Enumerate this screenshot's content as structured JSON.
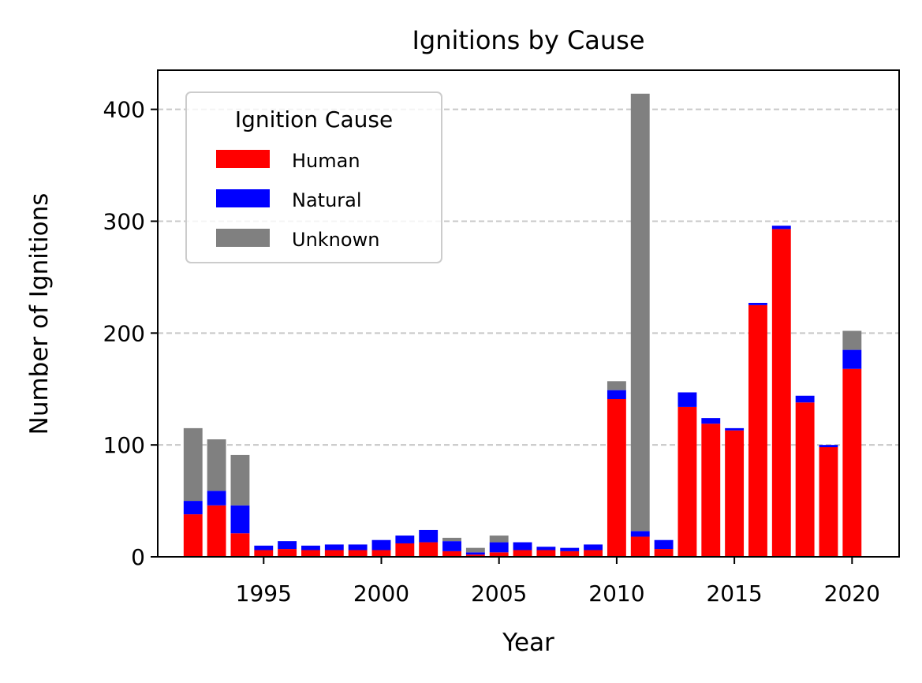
{
  "chart_data": {
    "type": "bar",
    "stacked": true,
    "title": "Ignitions by Cause",
    "xlabel": "Year",
    "ylabel": "Number of Ignitions",
    "x": [
      1992,
      1993,
      1994,
      1995,
      1996,
      1997,
      1998,
      1999,
      2000,
      2001,
      2002,
      2003,
      2004,
      2005,
      2006,
      2007,
      2008,
      2009,
      2010,
      2011,
      2012,
      2013,
      2014,
      2015,
      2016,
      2017,
      2018,
      2019,
      2020
    ],
    "series": [
      {
        "name": "Human",
        "color": "#ff0000",
        "values": [
          38,
          46,
          21,
          6,
          7,
          6,
          6,
          6,
          6,
          12,
          13,
          5,
          2,
          4,
          6,
          6,
          5,
          6,
          141,
          18,
          7,
          134,
          119,
          113,
          225,
          293,
          138,
          98,
          168
        ]
      },
      {
        "name": "Natural",
        "color": "#0000ff",
        "values": [
          12,
          13,
          25,
          4,
          7,
          4,
          5,
          5,
          9,
          7,
          11,
          9,
          2,
          9,
          7,
          3,
          3,
          5,
          8,
          5,
          8,
          13,
          5,
          2,
          2,
          3,
          6,
          2,
          17
        ]
      },
      {
        "name": "Unknown",
        "color": "#808080",
        "values": [
          65,
          46,
          45,
          0,
          0,
          0,
          0,
          0,
          0,
          0,
          0,
          3,
          4,
          6,
          0,
          0,
          0,
          0,
          8,
          391,
          0,
          0,
          0,
          0,
          0,
          0,
          0,
          0,
          17
        ]
      }
    ],
    "xlim": [
      1990.5,
      2022.0
    ],
    "ylim": [
      0,
      435
    ],
    "xticks": [
      1995,
      2000,
      2005,
      2010,
      2015,
      2020
    ],
    "yticks": [
      0,
      100,
      200,
      300,
      400
    ],
    "grid": "y-dashed",
    "legend": {
      "title": "Ignition Cause",
      "position": "upper-left",
      "entries": [
        "Human",
        "Natural",
        "Unknown"
      ]
    }
  }
}
